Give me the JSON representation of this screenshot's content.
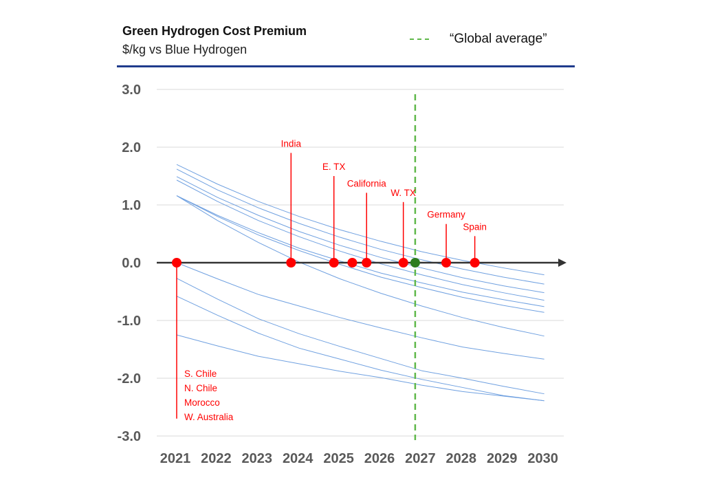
{
  "chart_data": {
    "type": "line",
    "title": "Green Hydrogen Cost Premium",
    "subtitle": "$/kg vs Blue Hydrogen",
    "legend": {
      "label": "“Global average”",
      "style": "dashed",
      "color": "#5fb84a",
      "placement": "top-right"
    },
    "x": [
      2021,
      2022,
      2023,
      2024,
      2025,
      2026,
      2027,
      2028,
      2029,
      2030
    ],
    "x_tick_labels": [
      "2021",
      "2022",
      "2023",
      "2024",
      "2025",
      "2026",
      "2027",
      "2028",
      "2029",
      "2030"
    ],
    "y_tick_labels": [
      "3.0",
      "2.0",
      "1.0",
      "0.0",
      "-1.0",
      "-2.0",
      "-3.0"
    ],
    "y_ticks": [
      3,
      2,
      1,
      0,
      -1,
      -2,
      -3
    ],
    "ylim": [
      -3,
      3
    ],
    "xlim": [
      2021,
      2030
    ],
    "grid": true,
    "line_color": "#6fa0e0",
    "series": [
      {
        "values": [
          1.7,
          1.36,
          1.06,
          0.8,
          0.57,
          0.37,
          0.19,
          0.04,
          -0.09,
          -0.21
        ]
      },
      {
        "values": [
          1.62,
          1.26,
          0.95,
          0.68,
          0.44,
          0.23,
          0.05,
          -0.11,
          -0.25,
          -0.37
        ]
      },
      {
        "values": [
          1.49,
          1.13,
          0.82,
          0.54,
          0.3,
          0.09,
          -0.09,
          -0.26,
          -0.4,
          -0.52
        ]
      },
      {
        "values": [
          1.43,
          1.06,
          0.73,
          0.45,
          0.2,
          -0.02,
          -0.21,
          -0.38,
          -0.52,
          -0.65
        ]
      },
      {
        "values": [
          1.16,
          0.82,
          0.52,
          0.25,
          0.03,
          -0.18,
          -0.35,
          -0.51,
          -0.64,
          -0.76
        ]
      },
      {
        "values": [
          1.16,
          0.8,
          0.48,
          0.21,
          -0.03,
          -0.25,
          -0.43,
          -0.6,
          -0.74,
          -0.86
        ]
      },
      {
        "values": [
          1.16,
          0.73,
          0.35,
          0.01,
          -0.28,
          -0.53,
          -0.75,
          -0.95,
          -1.12,
          -1.27
        ]
      },
      {
        "values": [
          0.0,
          -0.28,
          -0.55,
          -0.75,
          -0.95,
          -1.13,
          -1.3,
          -1.46,
          -1.57,
          -1.67
        ]
      },
      {
        "values": [
          -0.27,
          -0.63,
          -0.97,
          -1.23,
          -1.45,
          -1.66,
          -1.87,
          -2.0,
          -2.14,
          -2.27
        ]
      },
      {
        "values": [
          -0.58,
          -0.91,
          -1.22,
          -1.48,
          -1.67,
          -1.86,
          -2.02,
          -2.16,
          -2.3,
          -2.39
        ]
      },
      {
        "values": [
          -1.25,
          -1.44,
          -1.62,
          -1.75,
          -1.88,
          -1.99,
          -2.12,
          -2.23,
          -2.31,
          -2.39
        ]
      }
    ],
    "global_average_year": 2026.84,
    "marker_color": "#ff0000",
    "global_marker_color": "#2e7d1f",
    "breakeven_markers": [
      {
        "label": "S. Chile\nN. Chile\nMorocco\nW. Australia",
        "year": 2021.0,
        "label_value": -2.7
      },
      {
        "label": "India",
        "year": 2023.8,
        "label_value": 1.9
      },
      {
        "label": "E. TX",
        "year": 2024.85,
        "label_value": 1.5
      },
      {
        "label": "",
        "year": 2025.3,
        "label_value": null
      },
      {
        "label": "California",
        "year": 2025.65,
        "label_value": 1.21
      },
      {
        "label": "W. TX",
        "year": 2026.55,
        "label_value": 1.05
      },
      {
        "label": "Germany",
        "year": 2027.6,
        "label_value": 0.67
      },
      {
        "label": "Spain",
        "year": 2028.3,
        "label_value": 0.46
      }
    ]
  }
}
